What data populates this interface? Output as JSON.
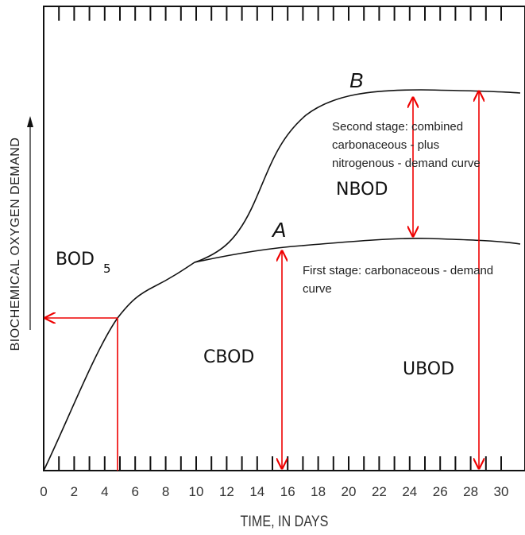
{
  "diagram": {
    "x_axis": {
      "label": "TIME, IN DAYS",
      "ticks": [
        0,
        2,
        4,
        6,
        8,
        10,
        12,
        14,
        16,
        18,
        20,
        22,
        24,
        26,
        28,
        30
      ]
    },
    "y_axis": {
      "label": "BIOCHEMICAL OXYGEN DEMAND"
    },
    "curves": {
      "b": {
        "name": "B",
        "description": [
          "Second stage: combined",
          "carbonaceous - plus",
          "nitrogenous - demand curve"
        ]
      },
      "a": {
        "name": "A",
        "description": [
          "First stage: carbonaceous - demand",
          "curve"
        ]
      }
    },
    "labels": {
      "bod": "BOD",
      "bod_sub": "5",
      "nbod": "NBOD",
      "cbod": "CBOD",
      "ubod": "UBOD"
    }
  }
}
